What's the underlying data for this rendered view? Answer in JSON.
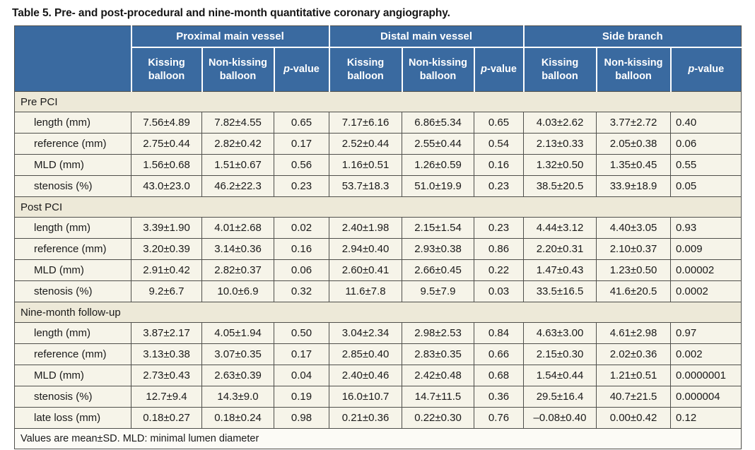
{
  "page": {
    "title": "Table 5. Pre- and post-procedural and nine-month quantitative coronary angiography."
  },
  "header": {
    "groups": [
      "Proximal main vessel",
      "Distal main vessel",
      "Side branch"
    ],
    "sub": {
      "kissing": "Kissing balloon",
      "non_kissing": "Non-kissing balloon",
      "p_italic": "p",
      "p_rest": "-value"
    }
  },
  "sections": [
    {
      "label": "Pre PCI",
      "rows": [
        {
          "label": "length (mm)",
          "values": [
            "7.56±4.89",
            "7.82±4.55",
            "0.65",
            "7.17±6.16",
            "6.86±5.34",
            "0.65",
            "4.03±2.62",
            "3.77±2.72",
            "0.40"
          ]
        },
        {
          "label": "reference (mm)",
          "values": [
            "2.75±0.44",
            "2.82±0.42",
            "0.17",
            "2.52±0.44",
            "2.55±0.44",
            "0.54",
            "2.13±0.33",
            "2.05±0.38",
            "0.06"
          ]
        },
        {
          "label": "MLD (mm)",
          "values": [
            "1.56±0.68",
            "1.51±0.67",
            "0.56",
            "1.16±0.51",
            "1.26±0.59",
            "0.16",
            "1.32±0.50",
            "1.35±0.45",
            "0.55"
          ]
        },
        {
          "label": "stenosis (%)",
          "values": [
            "43.0±23.0",
            "46.2±22.3",
            "0.23",
            "53.7±18.3",
            "51.0±19.9",
            "0.23",
            "38.5±20.5",
            "33.9±18.9",
            "0.05"
          ]
        }
      ]
    },
    {
      "label": "Post PCI",
      "rows": [
        {
          "label": "length (mm)",
          "values": [
            "3.39±1.90",
            "4.01±2.68",
            "0.02",
            "2.40±1.98",
            "2.15±1.54",
            "0.23",
            "4.44±3.12",
            "4.40±3.05",
            "0.93"
          ]
        },
        {
          "label": "reference (mm)",
          "values": [
            "3.20±0.39",
            "3.14±0.36",
            "0.16",
            "2.94±0.40",
            "2.93±0.38",
            "0.86",
            "2.20±0.31",
            "2.10±0.37",
            "0.009"
          ]
        },
        {
          "label": "MLD (mm)",
          "values": [
            "2.91±0.42",
            "2.82±0.37",
            "0.06",
            "2.60±0.41",
            "2.66±0.45",
            "0.22",
            "1.47±0.43",
            "1.23±0.50",
            "0.00002"
          ]
        },
        {
          "label": "stenosis (%)",
          "values": [
            "9.2±6.7",
            "10.0±6.9",
            "0.32",
            "11.6±7.8",
            "9.5±7.9",
            "0.03",
            "33.5±16.5",
            "41.6±20.5",
            "0.0002"
          ]
        }
      ]
    },
    {
      "label": "Nine-month follow-up",
      "rows": [
        {
          "label": "length (mm)",
          "values": [
            "3.87±2.17",
            "4.05±1.94",
            "0.50",
            "3.04±2.34",
            "2.98±2.53",
            "0.84",
            "4.63±3.00",
            "4.61±2.98",
            "0.97"
          ]
        },
        {
          "label": "reference (mm)",
          "values": [
            "3.13±0.38",
            "3.07±0.35",
            "0.17",
            "2.85±0.40",
            "2.83±0.35",
            "0.66",
            "2.15±0.30",
            "2.02±0.36",
            "0.002"
          ]
        },
        {
          "label": "MLD (mm)",
          "values": [
            "2.73±0.43",
            "2.63±0.39",
            "0.04",
            "2.40±0.46",
            "2.42±0.48",
            "0.68",
            "1.54±0.44",
            "1.21±0.51",
            "0.0000001"
          ]
        },
        {
          "label": "stenosis (%)",
          "values": [
            "12.7±9.4",
            "14.3±9.0",
            "0.19",
            "16.0±10.7",
            "14.7±11.5",
            "0.36",
            "29.5±16.4",
            "40.7±21.5",
            "0.000004"
          ]
        },
        {
          "label": "late loss (mm)",
          "values": [
            "0.18±0.27",
            "0.18±0.24",
            "0.98",
            "0.21±0.36",
            "0.22±0.30",
            "0.76",
            "–0.08±0.40",
            "0.00±0.42",
            "0.12"
          ]
        }
      ]
    }
  ],
  "footnote": "Values are mean±SD. MLD: minimal lumen diameter",
  "colors": {
    "header_bg": "#3a6aa0",
    "section_bg": "#ede9d8",
    "cell_bg": "#f6f4e9",
    "footer_bg": "#fcfbf6",
    "border": "#4f4f4b"
  }
}
